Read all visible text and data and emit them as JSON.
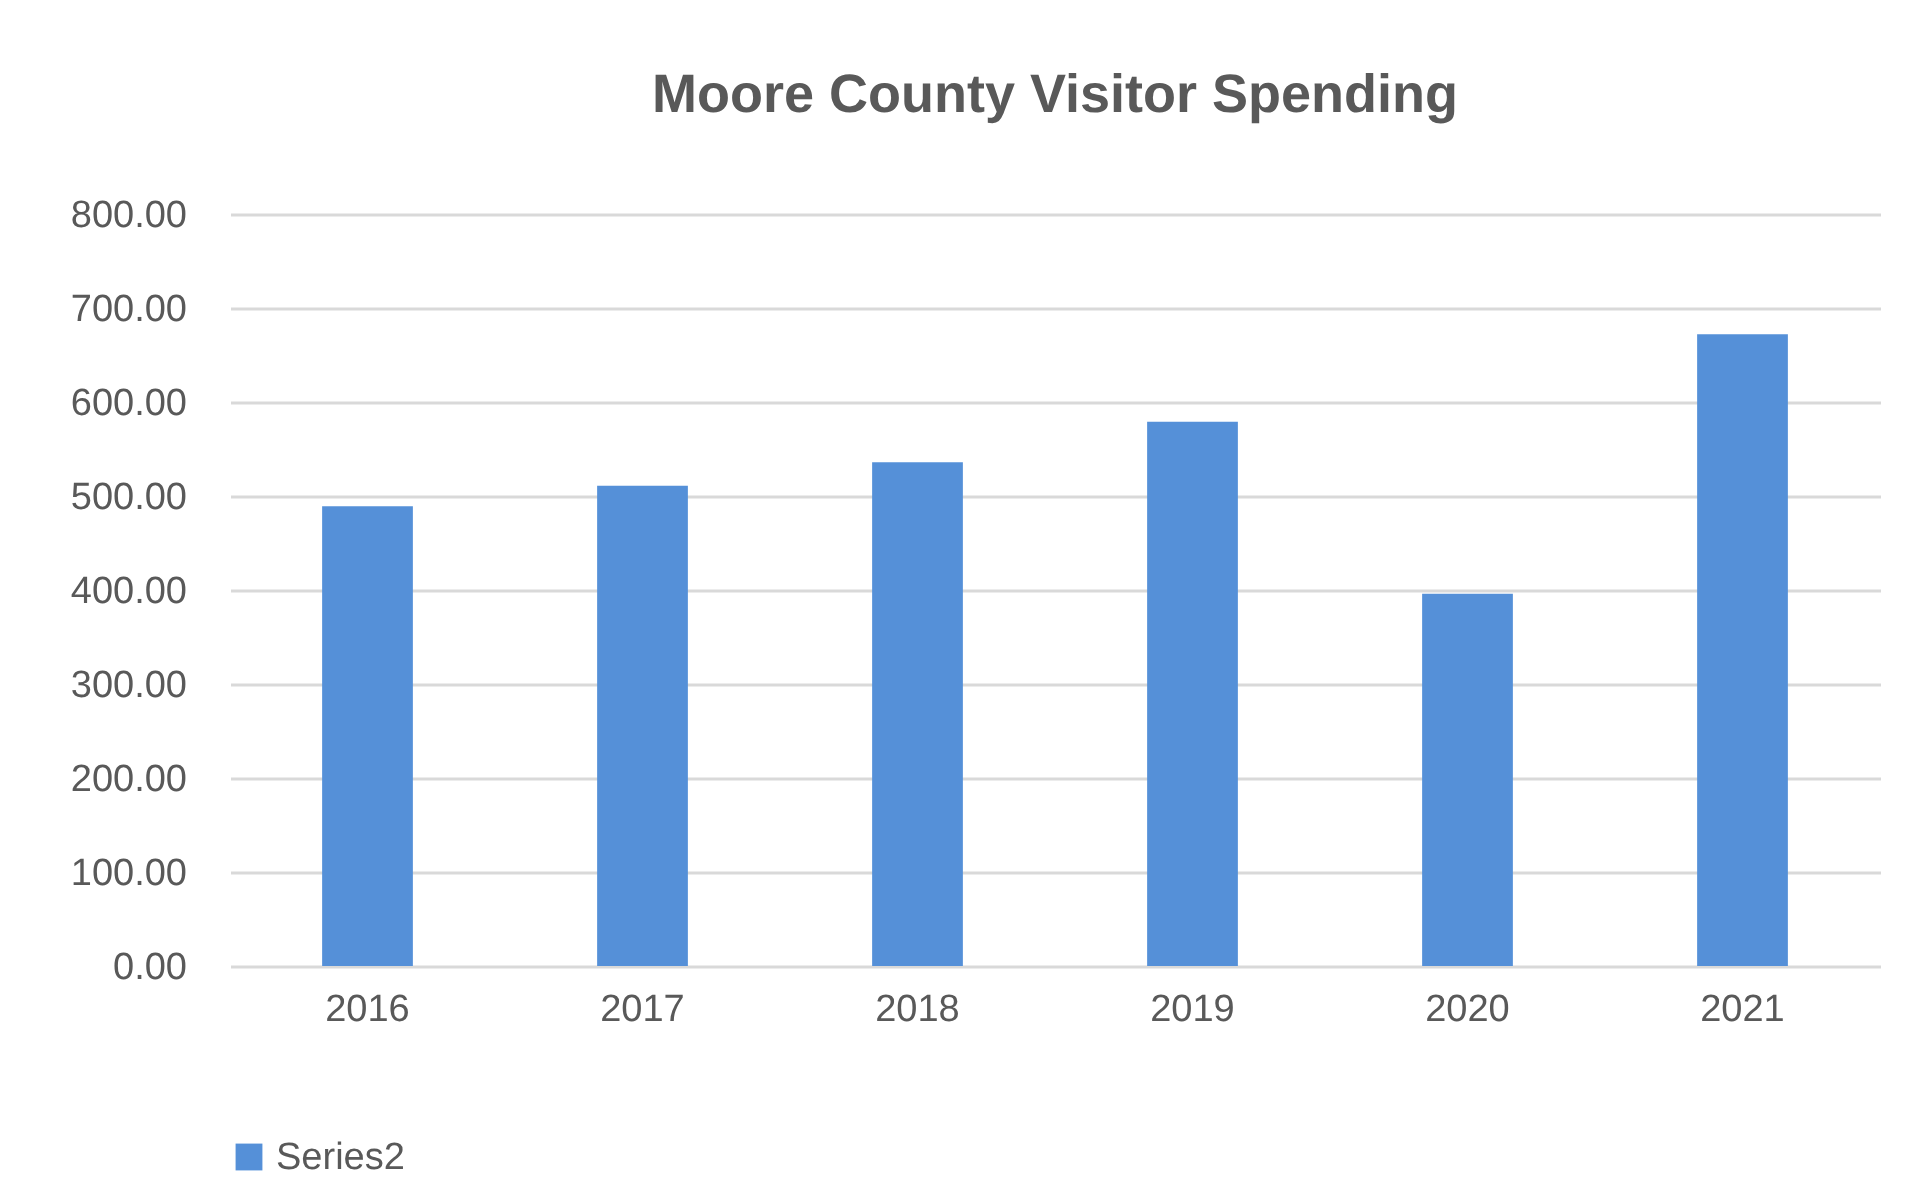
{
  "chart_data": {
    "type": "bar",
    "title": "Moore County Visitor Spending",
    "categories": [
      "2016",
      "2017",
      "2018",
      "2019",
      "2020",
      "2021"
    ],
    "series": [
      {
        "name": "Series2",
        "color": "#5590d8",
        "values": [
          489,
          511,
          536,
          579,
          396,
          672
        ]
      }
    ],
    "ylim": [
      0,
      800
    ],
    "yticks": [
      {
        "value": 0,
        "label": "0.00"
      },
      {
        "value": 100,
        "label": "100.00"
      },
      {
        "value": 200,
        "label": "200.00"
      },
      {
        "value": 300,
        "label": "300.00"
      },
      {
        "value": 400,
        "label": "400.00"
      },
      {
        "value": 500,
        "label": "500.00"
      },
      {
        "value": 600,
        "label": "600.00"
      },
      {
        "value": 700,
        "label": "700.00"
      },
      {
        "value": 800,
        "label": "800.00"
      }
    ],
    "grid": "y",
    "legend": "bottom"
  }
}
